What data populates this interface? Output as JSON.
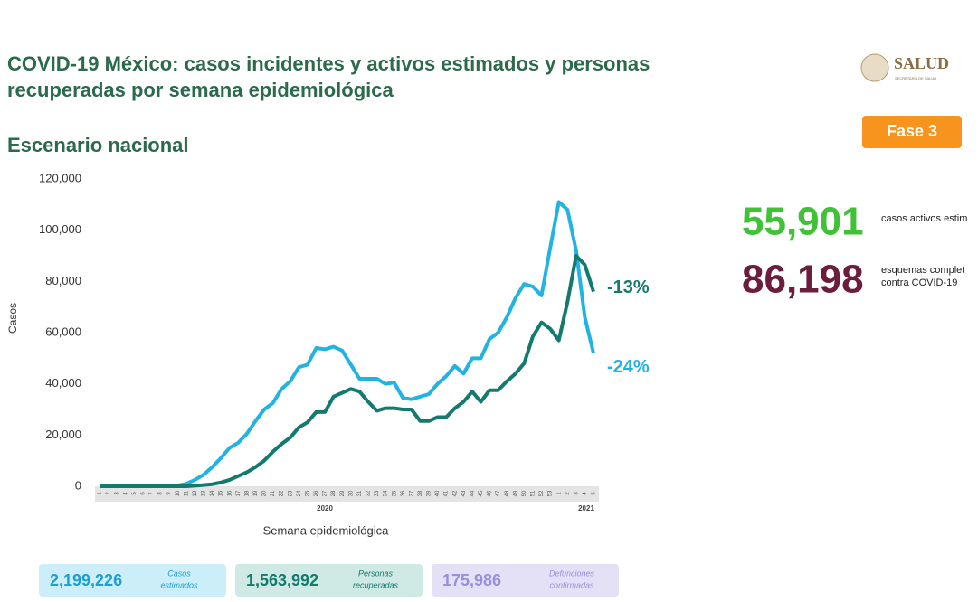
{
  "header": {
    "title_lines": [
      "COVID-19 México: casos incidentes y activos estimados y personas",
      "recuperadas por semana epidemiológica"
    ],
    "subtitle": "Escenario nacional",
    "logo": "SALUD",
    "logo_sub": "SECRETARÍA DE SALUD",
    "phase": "Fase 3"
  },
  "chart_data": {
    "type": "line",
    "categories": [
      "1",
      "2",
      "3",
      "4",
      "5",
      "6",
      "7",
      "8",
      "9",
      "10",
      "11",
      "12",
      "13",
      "14",
      "15",
      "16",
      "17",
      "18",
      "19",
      "20",
      "21",
      "22",
      "23",
      "24",
      "25",
      "26",
      "27",
      "28",
      "29",
      "30",
      "31",
      "32",
      "33",
      "34",
      "35",
      "36",
      "37",
      "38",
      "39",
      "40",
      "41",
      "42",
      "43",
      "44",
      "45",
      "46",
      "47",
      "48",
      "49",
      "50",
      "51",
      "52",
      "53",
      "1",
      "2",
      "3",
      "4",
      "5"
    ],
    "x_groups": [
      {
        "label": "2020",
        "from": 0,
        "to": 52
      },
      {
        "label": "2021",
        "from": 53,
        "to": 57
      }
    ],
    "x_label": "Semana epidemiológica",
    "y_label": "Casos",
    "ylim": [
      0,
      120000
    ],
    "yticks": [
      0,
      {
        "value": 20000,
        "label": "20,000"
      },
      {
        "value": 40000,
        "label": "40,000"
      },
      {
        "value": 60000,
        "label": "60,000"
      },
      {
        "value": 80000,
        "label": "80,000"
      },
      {
        "value": 100000,
        "label": "100,000"
      },
      {
        "value": 120000,
        "label": "120,000"
      }
    ],
    "series": [
      {
        "color": "#22b3e2",
        "annotation": "-24%",
        "values": [
          0,
          0,
          0,
          0,
          0,
          0,
          0,
          0,
          0,
          300,
          1000,
          2500,
          4500,
          7500,
          11000,
          15000,
          17000,
          20500,
          25500,
          30000,
          32500,
          38000,
          41000,
          46500,
          47500,
          54000,
          53500,
          54500,
          53000,
          47500,
          42000,
          42000,
          42000,
          40000,
          40500,
          34500,
          34000,
          35000,
          36000,
          40000,
          43000,
          47000,
          44000,
          50000,
          50000,
          57500,
          60000,
          66000,
          73500,
          79000,
          78000,
          74500,
          93000,
          111000,
          108000,
          92000,
          66000,
          52000
        ]
      },
      {
        "color": "#137a6d",
        "annotation": "-13%",
        "values": [
          0,
          0,
          0,
          0,
          0,
          0,
          0,
          0,
          0,
          0,
          0,
          200,
          500,
          800,
          1500,
          2500,
          4000,
          5500,
          7500,
          10000,
          13500,
          16500,
          19000,
          23000,
          25000,
          29000,
          29000,
          35000,
          36500,
          38000,
          37000,
          33000,
          29500,
          30500,
          30500,
          30000,
          30000,
          25500,
          25500,
          27000,
          27000,
          30500,
          33000,
          37000,
          33000,
          37500,
          37500,
          41000,
          44000,
          48000,
          58500,
          64000,
          61500,
          57000,
          72000,
          90000,
          86500,
          76000
        ]
      }
    ]
  },
  "stats": [
    {
      "value": "55,901",
      "color": "#3fc236",
      "label_lines": [
        "casos activos estim"
      ]
    },
    {
      "value": "86,198",
      "color": "#6a1d3c",
      "label_lines": [
        "esquemas complet",
        "contra COVID-19"
      ]
    }
  ],
  "footer": [
    {
      "value": "2,199,226",
      "label_lines": [
        "Casos",
        "estimados"
      ],
      "color": "#1e9fd2",
      "bg": "#cbeef9"
    },
    {
      "value": "1,563,992",
      "label_lines": [
        "Personas",
        "recuperadas"
      ],
      "color": "#137a6d",
      "bg": "#cfe9e5"
    },
    {
      "value": "175,986",
      "label_lines": [
        "Defunciones",
        "confirmadas"
      ],
      "color": "#9890d8",
      "bg": "#e4e1f6"
    }
  ]
}
